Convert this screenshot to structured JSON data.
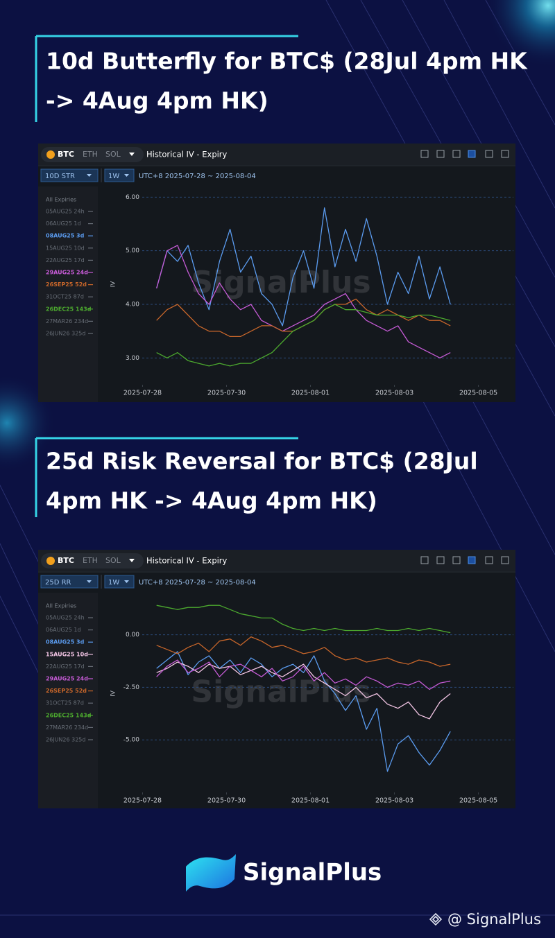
{
  "sections": [
    {
      "heading": [
        "10d Butterfly for BTC$ (28Jul 4pm HK",
        "-> 4Aug 4pm HK)"
      ],
      "panel": {
        "coins": [
          "BTC",
          "ETH",
          "SOL"
        ],
        "title": "Historical IV - Expiry",
        "metric": "10D STR",
        "period": "1W",
        "range": "UTC+8 2025-07-28 ~ 2025-08-04",
        "expiries_header": "All Expiries",
        "expiries": [
          "05AUG25 24h",
          "06AUG25 1d",
          "08AUG25 3d",
          "15AUG25 10d",
          "22AUG25 17d",
          "29AUG25 24d",
          "26SEP25 52d",
          "31OCT25 87d",
          "26DEC25 143d",
          "27MAR26 234d",
          "26JUN26 325d"
        ]
      }
    },
    {
      "heading": [
        "25d Risk Reversal for BTC$ (28Jul",
        "4pm HK -> 4Aug 4pm HK)"
      ],
      "panel": {
        "coins": [
          "BTC",
          "ETH",
          "SOL"
        ],
        "title": "Historical IV - Expiry",
        "metric": "25D RR",
        "period": "1W",
        "range": "UTC+8 2025-07-28 ~ 2025-08-04",
        "expiries_header": "All Expiries",
        "expiries": [
          "05AUG25 24h",
          "06AUG25 1d",
          "08AUG25 3d",
          "15AUG25 10d",
          "22AUG25 17d",
          "29AUG25 24d",
          "26SEP25 52d",
          "31OCT25 87d",
          "26DEC25 143d",
          "27MAR26 234d",
          "26JUN26 325d"
        ]
      }
    }
  ],
  "chart_data": [
    {
      "type": "line",
      "y_label": "IV",
      "watermark": "SignalPlus",
      "grid": true,
      "x": [
        "2025-07-28T08:00",
        "2025-07-28T14:00",
        "2025-07-28T20:00",
        "2025-07-29T02:00",
        "2025-07-29T08:00",
        "2025-07-29T14:00",
        "2025-07-29T20:00",
        "2025-07-30T02:00",
        "2025-07-30T08:00",
        "2025-07-30T14:00",
        "2025-07-30T20:00",
        "2025-07-31T02:00",
        "2025-07-31T08:00",
        "2025-07-31T14:00",
        "2025-07-31T20:00",
        "2025-08-01T02:00",
        "2025-08-01T08:00",
        "2025-08-01T14:00",
        "2025-08-01T20:00",
        "2025-08-02T02:00",
        "2025-08-02T08:00",
        "2025-08-02T14:00",
        "2025-08-02T20:00",
        "2025-08-03T02:00",
        "2025-08-03T08:00",
        "2025-08-03T14:00",
        "2025-08-03T20:00",
        "2025-08-04T02:00",
        "2025-08-04T08:00"
      ],
      "xlim": [
        "2025-07-27T00:00",
        "2025-08-05T20:00"
      ],
      "xticks": [
        "2025-07-28",
        "2025-07-30",
        "2025-08-01",
        "2025-08-03",
        "2025-08-05"
      ],
      "ylim": [
        2.5,
        6.25
      ],
      "yticks": [
        {
          "value": 3,
          "label": "3.00"
        },
        {
          "value": 4,
          "label": "4.00"
        },
        {
          "value": 5,
          "label": "5.00"
        },
        {
          "value": 6,
          "label": "6.00"
        }
      ],
      "series": [
        {
          "name": "08AUG25 3d",
          "color": "#5b9cf0",
          "values": [
            4.3,
            5.0,
            4.8,
            5.1,
            4.4,
            3.9,
            4.8,
            5.4,
            4.6,
            4.9,
            4.2,
            4.0,
            3.6,
            4.5,
            5.0,
            4.3,
            5.8,
            4.7,
            5.4,
            4.8,
            5.6,
            4.9,
            4.0,
            4.6,
            4.2,
            4.9,
            4.1,
            4.7,
            4.0
          ]
        },
        {
          "name": "29AUG25 24d",
          "color": "#c65bd6",
          "values": [
            4.3,
            5.0,
            5.1,
            4.6,
            4.2,
            4.0,
            4.4,
            4.1,
            3.9,
            4.0,
            3.7,
            3.6,
            3.5,
            3.6,
            3.7,
            3.8,
            4.0,
            4.1,
            4.2,
            3.9,
            3.7,
            3.6,
            3.5,
            3.6,
            3.3,
            3.2,
            3.1,
            3.0,
            3.1
          ]
        },
        {
          "name": "26SEP25 52d",
          "color": "#c8662a",
          "values": [
            3.7,
            3.9,
            4.0,
            3.8,
            3.6,
            3.5,
            3.5,
            3.4,
            3.4,
            3.5,
            3.6,
            3.6,
            3.5,
            3.5,
            3.6,
            3.7,
            3.9,
            4.0,
            4.0,
            4.1,
            3.9,
            3.8,
            3.9,
            3.8,
            3.7,
            3.8,
            3.7,
            3.7,
            3.6
          ]
        },
        {
          "name": "26DEC25 143d",
          "color": "#4caa2e",
          "values": [
            3.1,
            3.0,
            3.1,
            2.95,
            2.9,
            2.85,
            2.9,
            2.85,
            2.9,
            2.9,
            3.0,
            3.1,
            3.3,
            3.5,
            3.6,
            3.7,
            3.9,
            4.0,
            3.9,
            3.9,
            3.85,
            3.8,
            3.8,
            3.8,
            3.75,
            3.8,
            3.8,
            3.75,
            3.7
          ]
        }
      ]
    },
    {
      "type": "line",
      "y_label": "IV",
      "watermark": "SignalPlus",
      "grid": true,
      "x": [
        "2025-07-28T08:00",
        "2025-07-28T14:00",
        "2025-07-28T20:00",
        "2025-07-29T02:00",
        "2025-07-29T08:00",
        "2025-07-29T14:00",
        "2025-07-29T20:00",
        "2025-07-30T02:00",
        "2025-07-30T08:00",
        "2025-07-30T14:00",
        "2025-07-30T20:00",
        "2025-07-31T02:00",
        "2025-07-31T08:00",
        "2025-07-31T14:00",
        "2025-07-31T20:00",
        "2025-08-01T02:00",
        "2025-08-01T08:00",
        "2025-08-01T14:00",
        "2025-08-01T20:00",
        "2025-08-02T02:00",
        "2025-08-02T08:00",
        "2025-08-02T14:00",
        "2025-08-02T20:00",
        "2025-08-03T02:00",
        "2025-08-03T08:00",
        "2025-08-03T14:00",
        "2025-08-03T20:00",
        "2025-08-04T02:00",
        "2025-08-04T08:00"
      ],
      "xlim": [
        "2025-07-27T00:00",
        "2025-08-05T20:00"
      ],
      "xticks": [
        "2025-07-28",
        "2025-07-30",
        "2025-08-01",
        "2025-08-03",
        "2025-08-05"
      ],
      "ylim": [
        -7.5,
        1.9
      ],
      "yticks": [
        {
          "value": -5,
          "label": "-5.00"
        },
        {
          "value": -2.5,
          "label": "-2.50"
        },
        {
          "value": 0,
          "label": "0.00"
        }
      ],
      "series": [
        {
          "name": "08AUG25 3d",
          "color": "#5b9cf0",
          "values": [
            -1.6,
            -1.2,
            -0.8,
            -1.9,
            -1.3,
            -1.0,
            -1.6,
            -1.2,
            -1.8,
            -1.1,
            -1.4,
            -2.0,
            -1.6,
            -1.4,
            -1.8,
            -1.0,
            -2.2,
            -2.8,
            -3.6,
            -2.9,
            -4.5,
            -3.5,
            -6.5,
            -5.2,
            -4.8,
            -5.6,
            -6.2,
            -5.5,
            -4.6
          ]
        },
        {
          "name": "15AUG25 10d",
          "color": "#f2c4e4",
          "values": [
            -1.8,
            -1.6,
            -1.3,
            -1.5,
            -1.8,
            -1.4,
            -1.6,
            -1.5,
            -1.9,
            -1.7,
            -1.5,
            -1.8,
            -2.0,
            -1.7,
            -1.4,
            -2.0,
            -2.3,
            -2.6,
            -2.9,
            -2.5,
            -3.0,
            -2.8,
            -3.3,
            -3.5,
            -3.2,
            -3.8,
            -4.0,
            -3.2,
            -2.8
          ]
        },
        {
          "name": "29AUG25 24d",
          "color": "#c65bd6",
          "values": [
            -2.0,
            -1.5,
            -1.2,
            -1.8,
            -1.6,
            -1.3,
            -2.0,
            -1.5,
            -1.4,
            -1.7,
            -2.0,
            -1.6,
            -2.2,
            -2.0,
            -1.5,
            -2.2,
            -1.8,
            -2.3,
            -2.1,
            -2.4,
            -2.0,
            -2.2,
            -2.5,
            -2.3,
            -2.4,
            -2.2,
            -2.6,
            -2.3,
            -2.2
          ]
        },
        {
          "name": "26SEP25 52d",
          "color": "#c8662a",
          "values": [
            -0.5,
            -0.7,
            -0.9,
            -0.6,
            -0.4,
            -0.8,
            -0.3,
            -0.2,
            -0.5,
            -0.1,
            -0.3,
            -0.6,
            -0.5,
            -0.7,
            -0.9,
            -0.8,
            -0.6,
            -1.0,
            -1.2,
            -1.1,
            -1.3,
            -1.2,
            -1.1,
            -1.3,
            -1.4,
            -1.2,
            -1.3,
            -1.5,
            -1.4
          ]
        },
        {
          "name": "26DEC25 143d",
          "color": "#4caa2e",
          "values": [
            1.4,
            1.3,
            1.2,
            1.3,
            1.3,
            1.4,
            1.4,
            1.2,
            1.0,
            0.9,
            0.8,
            0.8,
            0.5,
            0.3,
            0.2,
            0.3,
            0.2,
            0.3,
            0.2,
            0.2,
            0.2,
            0.3,
            0.2,
            0.2,
            0.3,
            0.2,
            0.3,
            0.2,
            0.1
          ]
        }
      ]
    }
  ],
  "footer": {
    "brand": "SignalPlus",
    "credit": "@ SignalPlus"
  }
}
